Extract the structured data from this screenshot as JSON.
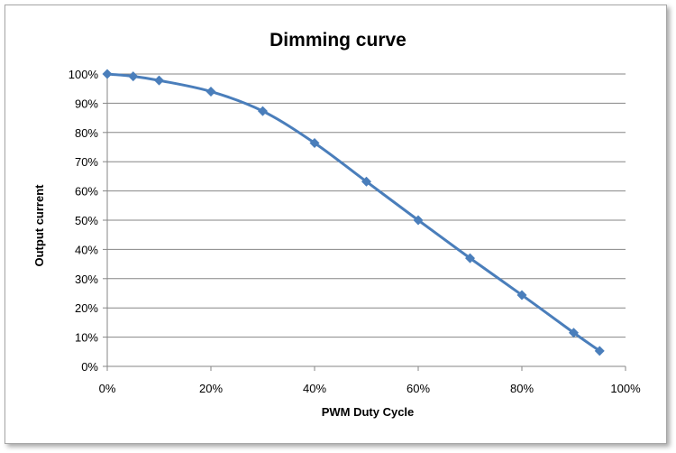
{
  "chart_data": {
    "type": "line",
    "title": "Dimming curve",
    "xlabel": "PWM Duty Cycle",
    "ylabel": "Output current",
    "xlim": [
      0,
      100
    ],
    "ylim": [
      0,
      100
    ],
    "x_ticks": [
      "0%",
      "20%",
      "40%",
      "60%",
      "80%",
      "100%"
    ],
    "y_ticks": [
      "0%",
      "10%",
      "20%",
      "30%",
      "40%",
      "50%",
      "60%",
      "70%",
      "80%",
      "90%",
      "100%"
    ],
    "grid": "horizontal",
    "legend": "none",
    "series": [
      {
        "color": "#4a7ebb",
        "marker": "diamond",
        "x": [
          0,
          5,
          10,
          20,
          30,
          40,
          50,
          60,
          70,
          80,
          90,
          95
        ],
        "y": [
          100,
          99.2,
          97.8,
          94,
          87.3,
          76.4,
          63.2,
          50,
          37,
          24.4,
          11.5,
          5.3
        ]
      }
    ]
  }
}
